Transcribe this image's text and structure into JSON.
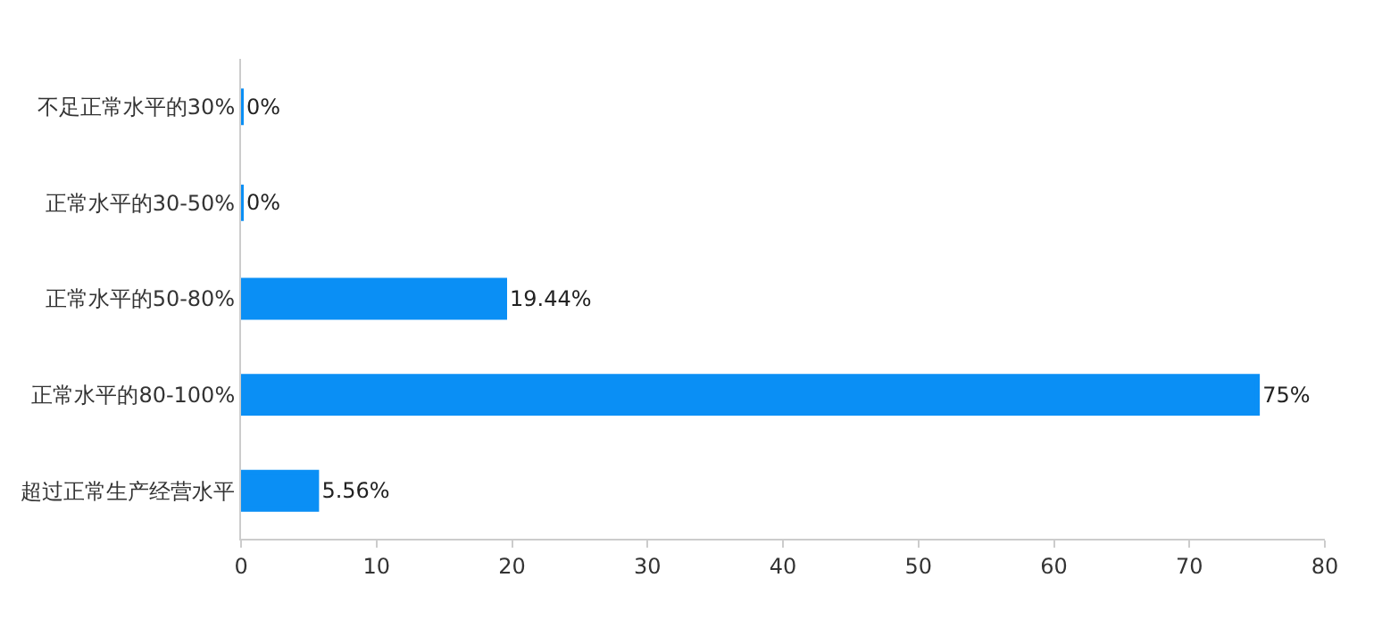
{
  "chart_data": {
    "type": "bar",
    "orientation": "horizontal",
    "categories": [
      "不足正常水平的30%",
      "正常水平的30-50%",
      "正常水平的50-80%",
      "正常水平的80-100%",
      "超过正常生产经营水平"
    ],
    "values": [
      0,
      0,
      19.44,
      75,
      5.56
    ],
    "value_labels": [
      "0%",
      "0%",
      "19.44%",
      "75%",
      "5.56%"
    ],
    "color": "#0a8ff5",
    "xlim": [
      0,
      80
    ],
    "xticks": [
      0,
      10,
      20,
      30,
      40,
      50,
      60,
      70,
      80
    ],
    "legend": false
  }
}
